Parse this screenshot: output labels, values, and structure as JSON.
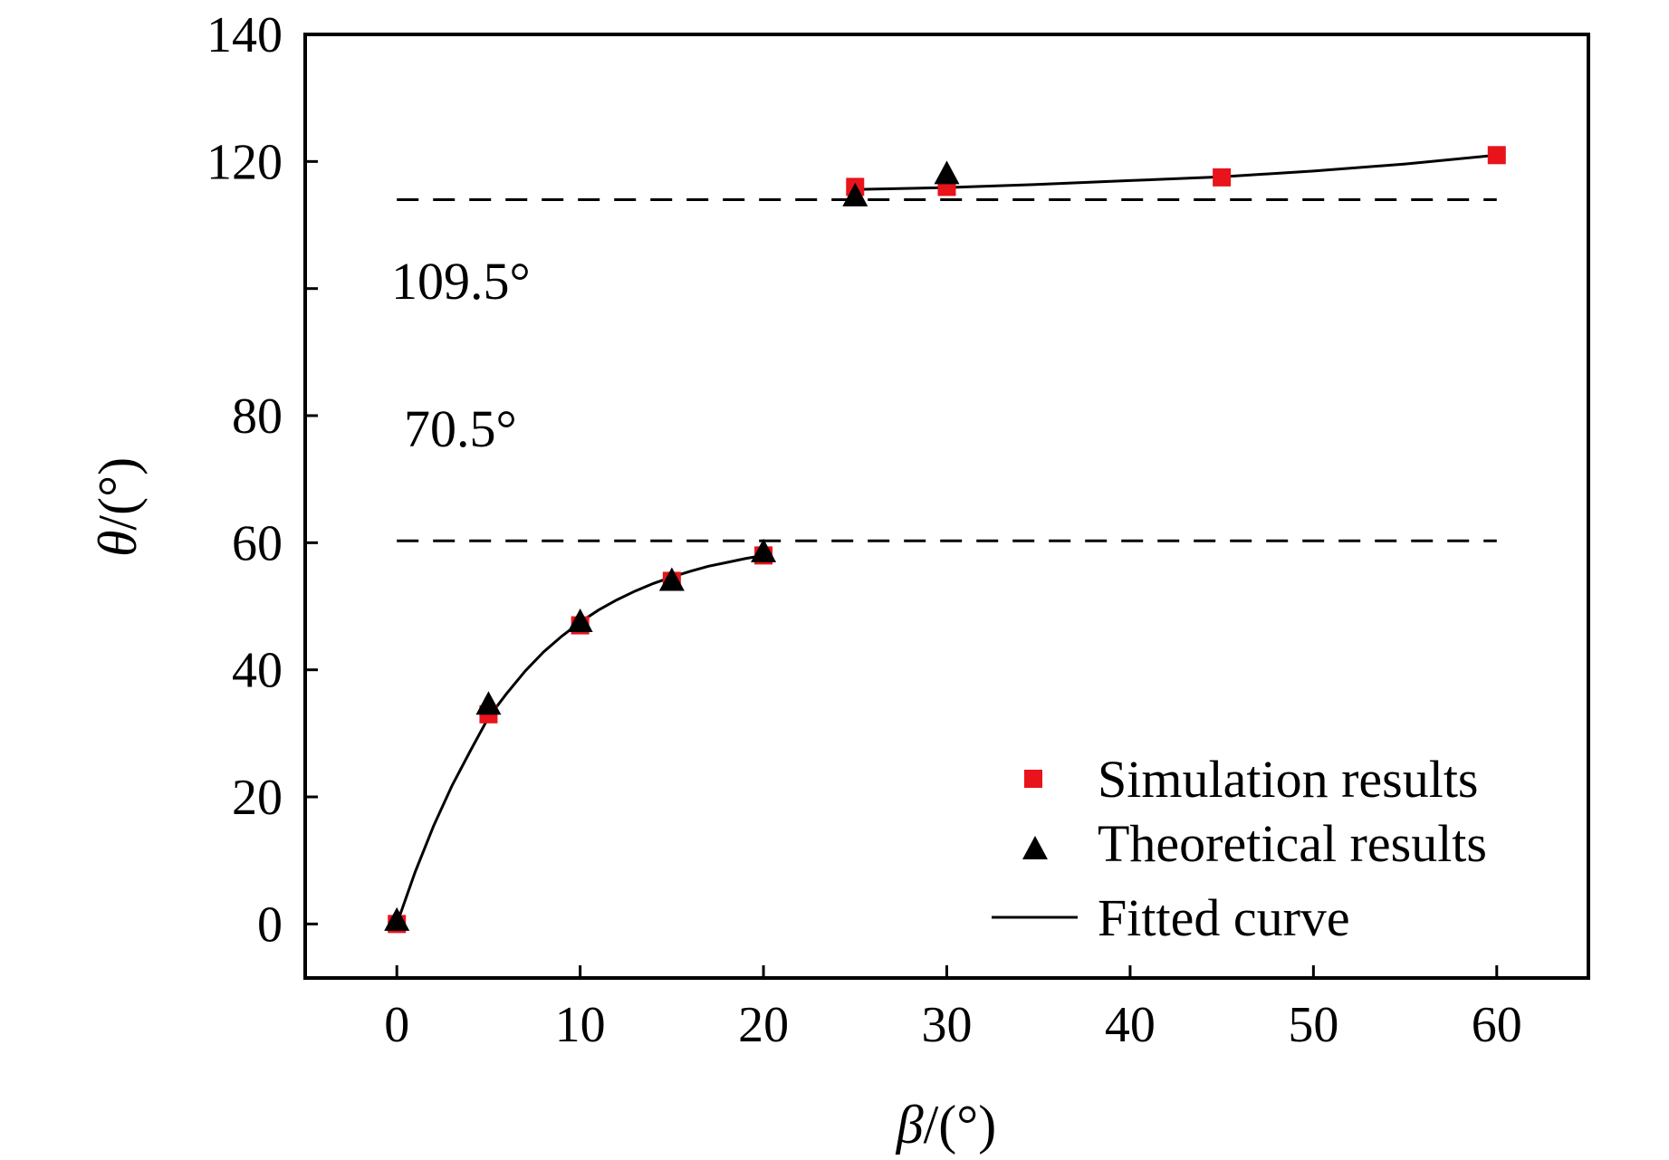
{
  "chart_data": {
    "type": "scatter",
    "xlabel_var": "β",
    "xlabel_unit": "/(°)",
    "ylabel_var": "θ",
    "ylabel_unit": "/(°)",
    "xlim": [
      -5,
      65
    ],
    "ylim": [
      -8.5,
      140
    ],
    "x_ticks": [
      0,
      10,
      20,
      30,
      40,
      50,
      60
    ],
    "x_tick_labels": [
      "0",
      "10",
      "20",
      "30",
      "40",
      "50",
      "60"
    ],
    "y_ticks": [
      0,
      20,
      40,
      60,
      80,
      100,
      120,
      140
    ],
    "y_tick_labels": [
      "0",
      "20",
      "40",
      "60",
      "80",
      "",
      "120",
      "140"
    ],
    "grid": false,
    "legend_position": "bottom-right",
    "series": [
      {
        "name": "Simulation results",
        "marker": "square",
        "color": "#e8131b",
        "x": [
          0,
          5,
          10,
          15,
          20,
          25,
          30,
          45,
          60
        ],
        "y": [
          0,
          33,
          47,
          54,
          58,
          116,
          116,
          117.5,
          121
        ]
      },
      {
        "name": "Theoretical results",
        "marker": "triangle",
        "color": "#000000",
        "x": [
          0,
          5,
          10,
          15,
          20,
          25,
          30
        ],
        "y": [
          0.5,
          34.5,
          47.5,
          54,
          58.5,
          114.5,
          118
        ]
      },
      {
        "name": "Fitted curve",
        "marker": "line",
        "color": "#000000",
        "segments": [
          {
            "x": [
              0,
              1,
              2,
              3,
              4,
              5,
              6,
              7,
              8,
              9,
              10,
              11,
              12,
              13,
              14,
              15,
              16,
              17,
              18,
              19,
              20
            ],
            "y": [
              0,
              8.2,
              15.4,
              21.7,
              27.2,
              32.5,
              36.3,
              39.8,
              42.8,
              45.3,
              47.5,
              49.4,
              51.0,
              52.4,
              53.6,
              54.6,
              55.5,
              56.3,
              56.9,
              57.5,
              58
            ]
          },
          {
            "x": [
              25,
              30,
              35,
              40,
              45,
              50,
              55,
              60
            ],
            "y": [
              115.6,
              115.9,
              116.4,
              117.0,
              117.6,
              118.5,
              119.6,
              121
            ]
          }
        ]
      }
    ],
    "reference_lines": [
      {
        "y": 114,
        "label": "109.5°"
      },
      {
        "y": 60.3,
        "label": "70.5°"
      }
    ]
  }
}
